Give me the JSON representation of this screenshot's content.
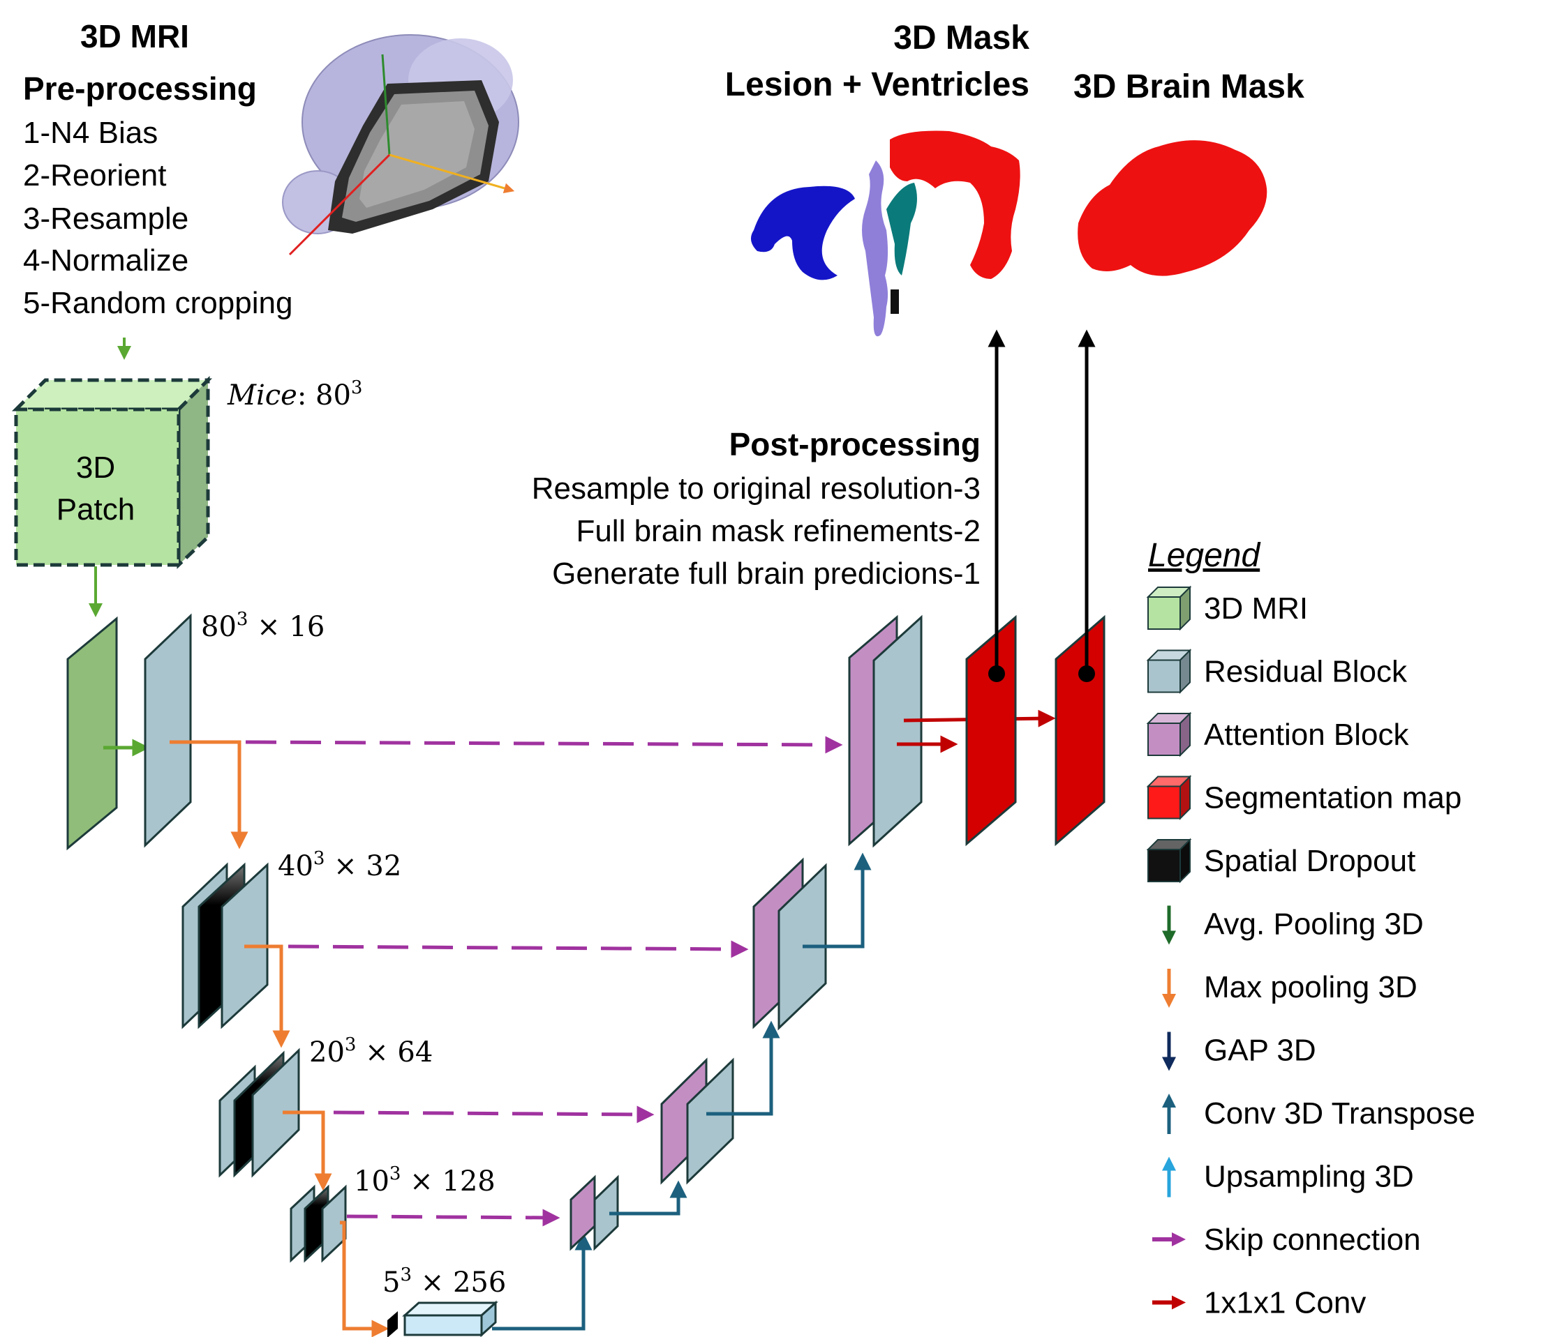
{
  "input": {
    "title": "3D MRI",
    "preprocessing_title": "Pre-processing",
    "steps": [
      "1-N4 Bias",
      "2-Reorient",
      "3-Resample",
      "4-Normalize",
      "5-Random cropping"
    ],
    "patch_line1": "3D",
    "patch_line2": "Patch",
    "patch_size_prefix": "Mice",
    "patch_size_value": ": 80",
    "patch_size_exp": "3"
  },
  "outputs": {
    "lesion_title_line1": "3D Mask",
    "lesion_title_line2": "Lesion + Ventricles",
    "brain_title": "3D Brain Mask"
  },
  "postprocessing": {
    "title": "Post-processing",
    "steps": [
      "Resample to original resolution-3",
      "Full brain mask refinements-2",
      "Generate full brain predicions-1"
    ]
  },
  "levels": [
    {
      "base": "80",
      "exp": "3",
      "rest": " × 16"
    },
    {
      "base": "40",
      "exp": "3",
      "rest": " × 32"
    },
    {
      "base": "20",
      "exp": "3",
      "rest": " × 64"
    },
    {
      "base": "10",
      "exp": "3",
      "rest": " × 128"
    },
    {
      "base": "5",
      "exp": "3",
      "rest": " × 256"
    }
  ],
  "legend": {
    "title": "Legend",
    "items": [
      {
        "label": "3D MRI",
        "kind": "cube",
        "icon": "cube-icon",
        "color": "#b5e3a2"
      },
      {
        "label": "Residual Block",
        "kind": "cube",
        "icon": "cube-icon",
        "color": "#a9c4cd"
      },
      {
        "label": "Attention Block",
        "kind": "cube",
        "icon": "cube-icon",
        "color": "#c38fc3"
      },
      {
        "label": "Segmentation map",
        "kind": "cube",
        "icon": "cube-icon",
        "color": "#ff1a1a"
      },
      {
        "label": "Spatial Dropout",
        "kind": "cube",
        "icon": "cube-icon",
        "color": "#111111"
      },
      {
        "label": "Avg. Pooling 3D",
        "kind": "arrow-down",
        "icon": "arrow-down-icon",
        "color": "#1f6b2a"
      },
      {
        "label": "Max pooling 3D",
        "kind": "arrow-down",
        "icon": "arrow-down-icon",
        "color": "#ee7d31"
      },
      {
        "label": "GAP 3D",
        "kind": "arrow-down",
        "icon": "arrow-down-icon",
        "color": "#0f2a5c"
      },
      {
        "label": "Conv 3D Transpose",
        "kind": "arrow-up",
        "icon": "arrow-up-icon",
        "color": "#1c607e"
      },
      {
        "label": "Upsampling 3D",
        "kind": "arrow-up",
        "icon": "arrow-up-icon",
        "color": "#27a4dc"
      },
      {
        "label": "Skip connection",
        "kind": "arrow-right",
        "icon": "arrow-right-icon",
        "color": "#a0329f"
      },
      {
        "label": "1x1x1 Conv",
        "kind": "arrow-right",
        "icon": "arrow-right-icon",
        "color": "#c00000"
      }
    ]
  },
  "colors": {
    "mri_green": "#90bd79",
    "patch_green": "#b5e3a2",
    "residual": "#a9c4cd",
    "attention": "#c38fc3",
    "segmentation": "#d40000",
    "dropout": "#000000",
    "bottleneck": "#cbe9f7",
    "skip": "#a0329f",
    "maxpool": "#ee7d31",
    "avgpool": "#5aa832",
    "transpose": "#1c607e",
    "conv1": "#c00000"
  }
}
